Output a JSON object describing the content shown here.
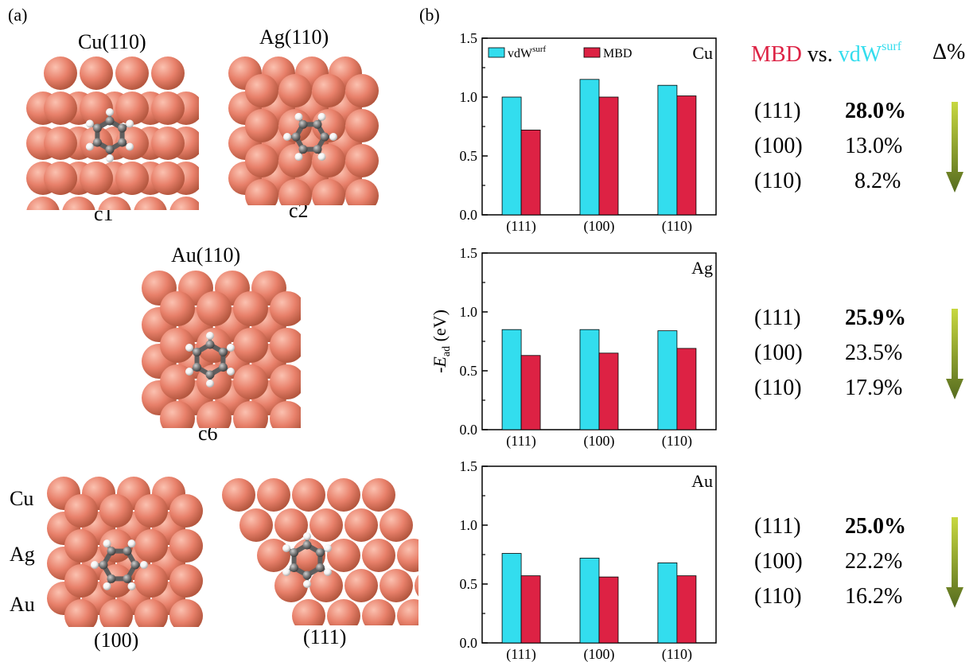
{
  "panel_a": {
    "letter": "(a)",
    "labels": {
      "cu110": "Cu(110)",
      "ag110": "Ag(110)",
      "au110": "Au(110)",
      "c1": "c1",
      "c2": "c2",
      "c6": "c6",
      "cu": "Cu",
      "ag": "Ag",
      "au": "Au",
      "f100": "(100)",
      "f111": "(111)"
    },
    "colors": {
      "atom": "#E8806A",
      "carbon": "#7A7A7A",
      "hydrogen": "#F2F2F2"
    }
  },
  "panel_b": {
    "letter": "(b)"
  },
  "chart_data": {
    "type": "bar",
    "ylabel_main": "-E",
    "ylabel_sub": "ad",
    "ylabel_unit": " (eV)",
    "ylim": [
      0,
      1.5
    ],
    "yticks": [
      "0.0",
      "0.5",
      "1.0",
      "1.5"
    ],
    "categories": [
      "(111)",
      "(100)",
      "(110)"
    ],
    "legend": {
      "vdw_base": "vdW",
      "vdw_sup": "surf",
      "mbd": "MBD"
    },
    "colors": {
      "vdw": "#33DDEE",
      "mbd": "#DD2244"
    },
    "panels": [
      {
        "name": "Cu",
        "vdw": [
          1.0,
          1.15,
          1.1
        ],
        "mbd": [
          0.72,
          1.0,
          1.01
        ]
      },
      {
        "name": "Ag",
        "vdw": [
          0.85,
          0.85,
          0.84
        ],
        "mbd": [
          0.63,
          0.65,
          0.69
        ]
      },
      {
        "name": "Au",
        "vdw": [
          0.76,
          0.72,
          0.68
        ],
        "mbd": [
          0.57,
          0.56,
          0.57
        ]
      }
    ]
  },
  "comparison": {
    "mbd": "MBD",
    "vs": " vs. ",
    "vdw": "vdW",
    "vdw_sup": "surf",
    "delta": "Δ%",
    "colors": {
      "mbd": "#DD2244",
      "vdw": "#33DDEE",
      "arrow_top": "#C8D840",
      "arrow_bottom": "#556B1F"
    },
    "groups": [
      {
        "rows": [
          {
            "facet": "(111)",
            "value": "28.0%"
          },
          {
            "facet": "(100)",
            "value": "13.0%"
          },
          {
            "facet": "(110)",
            "value": "8.2%"
          }
        ]
      },
      {
        "rows": [
          {
            "facet": "(111)",
            "value": "25.9%"
          },
          {
            "facet": "(100)",
            "value": "23.5%"
          },
          {
            "facet": "(110)",
            "value": "17.9%"
          }
        ]
      },
      {
        "rows": [
          {
            "facet": "(111)",
            "value": "25.0%"
          },
          {
            "facet": "(100)",
            "value": "22.2%"
          },
          {
            "facet": "(110)",
            "value": "16.2%"
          }
        ]
      }
    ]
  }
}
